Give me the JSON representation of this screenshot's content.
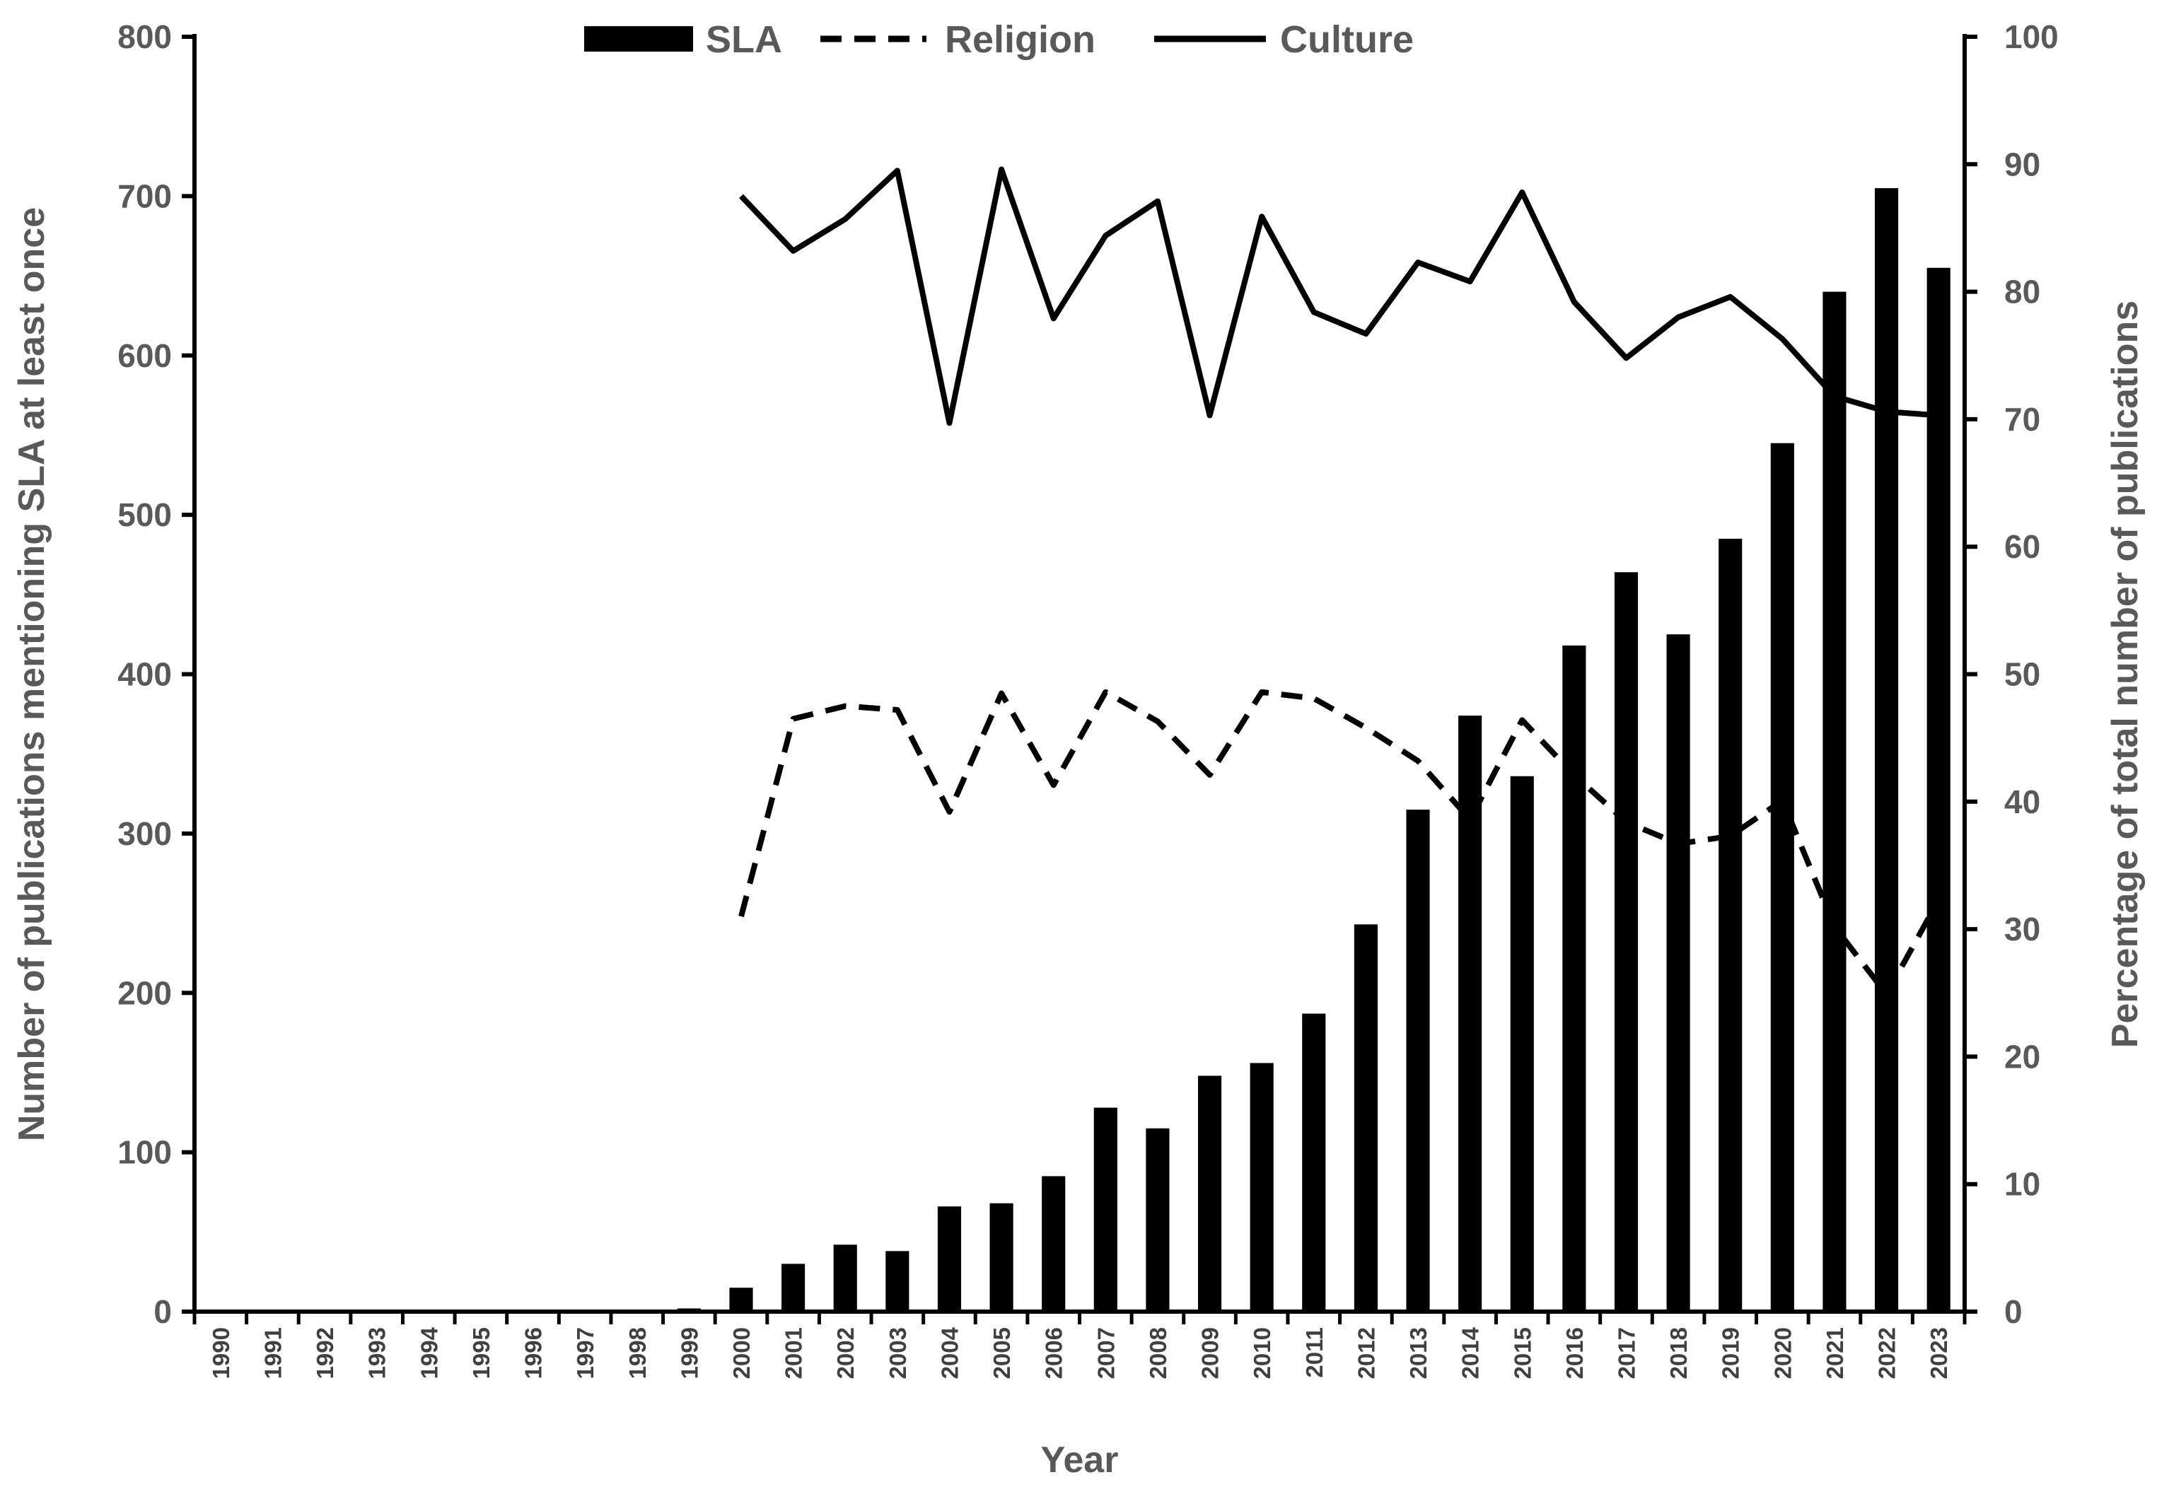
{
  "chart_data": {
    "type": "bar",
    "categories": [
      "1990",
      "1991",
      "1992",
      "1993",
      "1994",
      "1995",
      "1996",
      "1997",
      "1998",
      "1999",
      "2000",
      "2001",
      "2002",
      "2003",
      "2004",
      "2005",
      "2006",
      "2007",
      "2008",
      "2009",
      "2010",
      "2011",
      "2012",
      "2013",
      "2014",
      "2015",
      "2016",
      "2017",
      "2018",
      "2019",
      "2020",
      "2021",
      "2022",
      "2023"
    ],
    "xlabel": "Year",
    "ylabel": "Number of publications mentioning SLA at least once",
    "y2label": "Percentage of total number of publications",
    "ylim": [
      0,
      800
    ],
    "y2lim": [
      0,
      100
    ],
    "yticks": [
      0,
      100,
      200,
      300,
      400,
      500,
      600,
      700,
      800
    ],
    "y2ticks": [
      0,
      10,
      20,
      30,
      40,
      50,
      60,
      70,
      80,
      90,
      100
    ],
    "legend_position": "top-center",
    "grid": false,
    "series": [
      {
        "name": "SLA",
        "type": "bar",
        "axis": "left",
        "color": "#000000",
        "values": [
          0,
          0,
          0,
          0,
          0,
          0,
          0,
          0,
          0,
          2,
          15,
          30,
          42,
          38,
          66,
          68,
          85,
          128,
          115,
          148,
          156,
          187,
          243,
          315,
          374,
          336,
          418,
          464,
          425,
          485,
          545,
          640,
          705,
          655
        ]
      },
      {
        "name": "Religion",
        "type": "line",
        "style": "dashed",
        "axis": "right",
        "color": "#000000",
        "values": [
          null,
          null,
          null,
          null,
          null,
          null,
          null,
          null,
          null,
          null,
          31,
          46.5,
          47.5,
          47.2,
          39.2,
          48.5,
          41.3,
          48.6,
          46.3,
          42.1,
          48.6,
          48.1,
          45.8,
          43.2,
          38.6,
          46.4,
          42.1,
          38.4,
          36.7,
          37.3,
          40.1,
          30.2,
          24.9,
          32.3
        ]
      },
      {
        "name": "Culture",
        "type": "line",
        "style": "solid",
        "axis": "right",
        "color": "#000000",
        "values": [
          null,
          null,
          null,
          null,
          null,
          null,
          null,
          null,
          null,
          null,
          87.5,
          83.2,
          85.7,
          89.5,
          69.7,
          89.6,
          77.9,
          84.4,
          87.1,
          70.3,
          85.9,
          78.4,
          76.7,
          82.3,
          80.8,
          87.8,
          79.2,
          74.8,
          78.0,
          79.6,
          76.3,
          71.8,
          70.6,
          70.3
        ]
      }
    ]
  }
}
